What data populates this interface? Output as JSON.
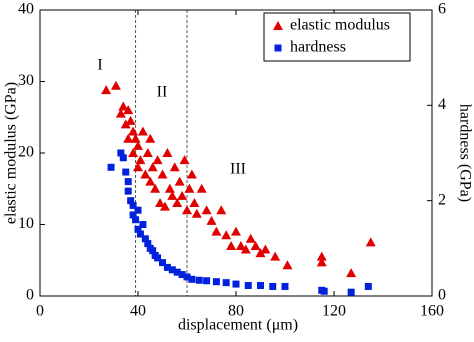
{
  "chart_data": {
    "type": "scatter",
    "xlabel": "displacement (μm)",
    "ylabel": "elastic modulus (GPa)",
    "y2label": "hardness (GPa)",
    "xlim": [
      0,
      160
    ],
    "xticks": [
      0,
      40,
      80,
      120,
      160
    ],
    "ylim": [
      0,
      40
    ],
    "yticks": [
      0,
      10,
      20,
      30,
      40
    ],
    "y2lim": [
      0,
      6
    ],
    "y2ticks": [
      0,
      2,
      4,
      6
    ],
    "legend": "upper right",
    "vlines": [
      39,
      60
    ],
    "annotations": [
      "I",
      "II",
      "III"
    ],
    "series": [
      {
        "name": "elastic modulus",
        "color": "#e00000",
        "marker": "triangle",
        "x": [
          27,
          31,
          33,
          34,
          35,
          36,
          36,
          37,
          38,
          38,
          39,
          40,
          40,
          41,
          42,
          43,
          44,
          45,
          45,
          46,
          47,
          48,
          49,
          50,
          51,
          52,
          53,
          54,
          55,
          56,
          57,
          58,
          59,
          60,
          61,
          62,
          63,
          64,
          66,
          68,
          70,
          72,
          74,
          76,
          78,
          80,
          82,
          84,
          86,
          88,
          90,
          92,
          96,
          101,
          115,
          115,
          127,
          135
        ],
        "values": [
          28.8,
          29.4,
          25.5,
          26.5,
          24,
          22,
          26,
          24.5,
          20,
          23,
          22,
          18,
          21,
          19,
          23,
          17,
          20,
          22,
          16,
          18,
          15,
          19,
          13,
          17,
          12.5,
          20,
          15,
          14,
          18,
          13,
          16,
          14,
          19,
          12,
          15,
          17,
          13,
          11.5,
          15,
          12,
          10.5,
          9,
          12,
          8.5,
          7,
          9,
          7,
          6.5,
          8,
          7,
          6,
          6.5,
          5.5,
          4.3,
          5.5,
          4.7,
          3.2,
          7.5
        ]
      },
      {
        "name": "hardness",
        "color": "#0022dd",
        "marker": "square",
        "axis": "y2",
        "x": [
          29,
          33,
          34,
          35,
          36,
          36,
          37,
          38,
          38,
          39,
          40,
          40,
          41,
          42,
          43,
          44,
          45,
          46,
          47,
          48,
          50,
          52,
          54,
          56,
          58,
          60,
          62,
          65,
          68,
          72,
          76,
          80,
          85,
          90,
          95,
          100,
          115,
          116,
          127,
          134
        ],
        "values": [
          2.7,
          3.0,
          2.9,
          2.6,
          2.4,
          2.2,
          2.0,
          1.9,
          1.7,
          1.6,
          1.8,
          1.4,
          1.3,
          1.5,
          1.2,
          1.1,
          1.0,
          0.95,
          0.85,
          0.8,
          0.7,
          0.6,
          0.55,
          0.5,
          0.45,
          0.4,
          0.35,
          0.33,
          0.32,
          0.3,
          0.28,
          0.25,
          0.22,
          0.22,
          0.2,
          0.2,
          0.12,
          0.1,
          0.08,
          0.2
        ]
      }
    ]
  }
}
